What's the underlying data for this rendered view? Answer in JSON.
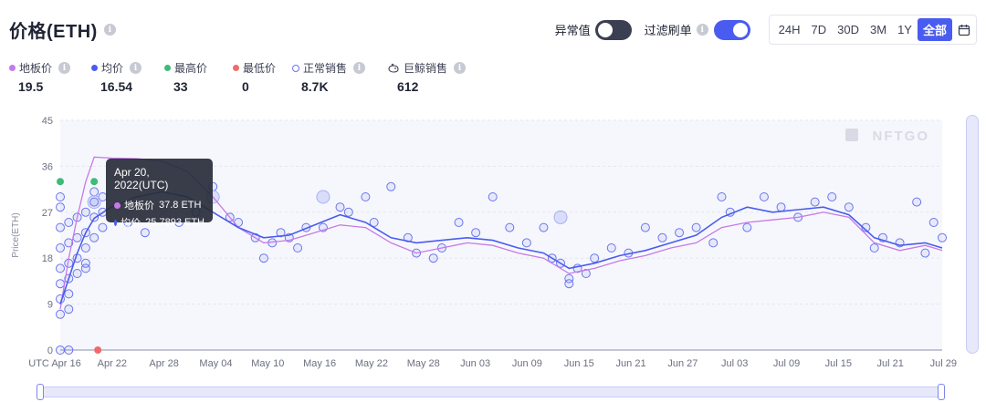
{
  "header": {
    "title": "价格(ETH)",
    "info_icon": "info-icon"
  },
  "controls": {
    "anomaly_label": "异常值",
    "anomaly_on": false,
    "filter_label": "过滤刷单",
    "filter_on": true,
    "ranges": [
      "24H",
      "7D",
      "30D",
      "3M",
      "1Y",
      "全部"
    ],
    "active_range": "全部",
    "calendar_icon": "calendar-icon"
  },
  "legend": [
    {
      "label": "地板价",
      "value": "19.5",
      "color": "#c779e8",
      "marker": "dot",
      "info": true
    },
    {
      "label": "均价",
      "value": "16.54",
      "color": "#4a5cf0",
      "marker": "dot",
      "info": true
    },
    {
      "label": "最高价",
      "value": "33",
      "color": "#3dbb77",
      "marker": "dot",
      "info": false
    },
    {
      "label": "最低价",
      "value": "0",
      "color": "#ef6b6b",
      "marker": "dot",
      "info": false
    },
    {
      "label": "正常销售",
      "value": "8.7K",
      "color": "#6a75ee",
      "marker": "ring",
      "info": true
    },
    {
      "label": "巨鲸销售",
      "value": "612",
      "color": "#3b3f52",
      "marker": "whale",
      "info": true
    }
  ],
  "tooltip": {
    "date": "Apr 20, 2022(UTC)",
    "rows": [
      {
        "label": "地板价",
        "value": "37.8 ETH",
        "color": "#c779e8"
      },
      {
        "label": "均价",
        "value": "25.7893 ETH",
        "color": "#4a5cf0"
      }
    ]
  },
  "watermark": "NFTGO",
  "chart_data": {
    "type": "line",
    "title": "",
    "xlabel": "",
    "ylabel": "Price(ETH)",
    "ylim": [
      0,
      45
    ],
    "yticks": [
      0,
      9,
      18,
      27,
      36,
      45
    ],
    "xlim": [
      "2022-04-16",
      "2022-07-29"
    ],
    "xtick_labels": [
      "UTC Apr 16",
      "Apr 22",
      "Apr 28",
      "May 04",
      "May 10",
      "May 16",
      "May 22",
      "May 28",
      "Jun 03",
      "Jun 09",
      "Jun 15",
      "Jun 21",
      "Jun 27",
      "Jul 03",
      "Jul 09",
      "Jul 15",
      "Jul 21",
      "Jul 29"
    ],
    "grid": true,
    "series": [
      {
        "name": "地板价",
        "color": "#c779e8",
        "points": [
          [
            "2022-04-16",
            8
          ],
          [
            "2022-04-17",
            18
          ],
          [
            "2022-04-18",
            26
          ],
          [
            "2022-04-19",
            33
          ],
          [
            "2022-04-20",
            37.8
          ],
          [
            "2022-04-22",
            37.6
          ],
          [
            "2022-04-25",
            37.5
          ],
          [
            "2022-04-28",
            37
          ],
          [
            "2022-05-01",
            35
          ],
          [
            "2022-05-04",
            30
          ],
          [
            "2022-05-07",
            24
          ],
          [
            "2022-05-10",
            21
          ],
          [
            "2022-05-13",
            21.5
          ],
          [
            "2022-05-16",
            23
          ],
          [
            "2022-05-19",
            24.5
          ],
          [
            "2022-05-22",
            24
          ],
          [
            "2022-05-25",
            21
          ],
          [
            "2022-05-28",
            19
          ],
          [
            "2022-05-31",
            20
          ],
          [
            "2022-06-03",
            21
          ],
          [
            "2022-06-06",
            20.5
          ],
          [
            "2022-06-09",
            19
          ],
          [
            "2022-06-12",
            18
          ],
          [
            "2022-06-15",
            15
          ],
          [
            "2022-06-18",
            16
          ],
          [
            "2022-06-21",
            17.5
          ],
          [
            "2022-06-24",
            18.5
          ],
          [
            "2022-06-27",
            20
          ],
          [
            "2022-06-30",
            21
          ],
          [
            "2022-07-03",
            24
          ],
          [
            "2022-07-06",
            25
          ],
          [
            "2022-07-09",
            25.5
          ],
          [
            "2022-07-12",
            26
          ],
          [
            "2022-07-15",
            27
          ],
          [
            "2022-07-18",
            26
          ],
          [
            "2022-07-21",
            21
          ],
          [
            "2022-07-24",
            19.5
          ],
          [
            "2022-07-27",
            20.5
          ],
          [
            "2022-07-29",
            19.5
          ]
        ]
      },
      {
        "name": "均价",
        "color": "#4a5cf0",
        "points": [
          [
            "2022-04-16",
            9
          ],
          [
            "2022-04-17",
            14
          ],
          [
            "2022-04-18",
            19
          ],
          [
            "2022-04-19",
            23
          ],
          [
            "2022-04-20",
            25.8
          ],
          [
            "2022-04-22",
            28
          ],
          [
            "2022-04-25",
            30
          ],
          [
            "2022-04-28",
            31
          ],
          [
            "2022-05-01",
            30
          ],
          [
            "2022-05-04",
            27
          ],
          [
            "2022-05-07",
            24
          ],
          [
            "2022-05-10",
            22
          ],
          [
            "2022-05-13",
            22.5
          ],
          [
            "2022-05-16",
            24.5
          ],
          [
            "2022-05-19",
            26.5
          ],
          [
            "2022-05-22",
            25
          ],
          [
            "2022-05-25",
            22
          ],
          [
            "2022-05-28",
            21
          ],
          [
            "2022-05-31",
            21.5
          ],
          [
            "2022-06-03",
            22
          ],
          [
            "2022-06-06",
            21.5
          ],
          [
            "2022-06-09",
            20
          ],
          [
            "2022-06-12",
            19
          ],
          [
            "2022-06-15",
            16
          ],
          [
            "2022-06-18",
            17
          ],
          [
            "2022-06-21",
            18.5
          ],
          [
            "2022-06-24",
            19.5
          ],
          [
            "2022-06-27",
            21
          ],
          [
            "2022-06-30",
            22.5
          ],
          [
            "2022-07-03",
            26
          ],
          [
            "2022-07-06",
            28
          ],
          [
            "2022-07-09",
            27
          ],
          [
            "2022-07-12",
            27.5
          ],
          [
            "2022-07-15",
            28
          ],
          [
            "2022-07-18",
            26.5
          ],
          [
            "2022-07-21",
            22
          ],
          [
            "2022-07-24",
            20.5
          ],
          [
            "2022-07-27",
            21
          ],
          [
            "2022-07-29",
            20
          ]
        ]
      }
    ],
    "sales_points": [
      [
        "2022-04-16",
        7
      ],
      [
        "2022-04-16",
        10
      ],
      [
        "2022-04-16",
        13
      ],
      [
        "2022-04-16",
        16
      ],
      [
        "2022-04-16",
        20
      ],
      [
        "2022-04-16",
        24
      ],
      [
        "2022-04-16",
        28
      ],
      [
        "2022-04-16",
        30
      ],
      [
        "2022-04-17",
        8
      ],
      [
        "2022-04-17",
        11
      ],
      [
        "2022-04-17",
        14
      ],
      [
        "2022-04-17",
        17
      ],
      [
        "2022-04-17",
        21
      ],
      [
        "2022-04-17",
        25
      ],
      [
        "2022-04-18",
        15
      ],
      [
        "2022-04-18",
        18
      ],
      [
        "2022-04-18",
        22
      ],
      [
        "2022-04-18",
        26
      ],
      [
        "2022-04-19",
        17
      ],
      [
        "2022-04-19",
        20
      ],
      [
        "2022-04-19",
        23
      ],
      [
        "2022-04-19",
        27
      ],
      [
        "2022-04-19",
        16
      ],
      [
        "2022-04-20",
        22
      ],
      [
        "2022-04-20",
        26
      ],
      [
        "2022-04-20",
        29
      ],
      [
        "2022-04-20",
        31
      ],
      [
        "2022-04-21",
        24
      ],
      [
        "2022-04-21",
        27
      ],
      [
        "2022-04-21",
        30
      ],
      [
        "2022-04-24",
        25
      ],
      [
        "2022-04-26",
        23
      ],
      [
        "2022-04-30",
        25
      ],
      [
        "2022-05-02",
        27
      ],
      [
        "2022-05-04",
        32
      ],
      [
        "2022-05-06",
        26
      ],
      [
        "2022-05-07",
        25
      ],
      [
        "2022-05-09",
        22
      ],
      [
        "2022-05-10",
        18
      ],
      [
        "2022-05-11",
        21
      ],
      [
        "2022-05-12",
        23
      ],
      [
        "2022-05-13",
        22
      ],
      [
        "2022-05-14",
        20
      ],
      [
        "2022-05-15",
        24
      ],
      [
        "2022-05-17",
        24
      ],
      [
        "2022-05-19",
        28
      ],
      [
        "2022-05-20",
        27
      ],
      [
        "2022-05-22",
        30
      ],
      [
        "2022-05-23",
        25
      ],
      [
        "2022-05-25",
        32
      ],
      [
        "2022-05-27",
        22
      ],
      [
        "2022-05-28",
        19
      ],
      [
        "2022-05-30",
        18
      ],
      [
        "2022-05-31",
        20
      ],
      [
        "2022-06-02",
        25
      ],
      [
        "2022-06-04",
        23
      ],
      [
        "2022-06-06",
        30
      ],
      [
        "2022-06-08",
        24
      ],
      [
        "2022-06-10",
        21
      ],
      [
        "2022-06-12",
        24
      ],
      [
        "2022-06-13",
        18
      ],
      [
        "2022-06-14",
        17
      ],
      [
        "2022-06-15",
        14
      ],
      [
        "2022-06-15",
        13
      ],
      [
        "2022-06-16",
        16
      ],
      [
        "2022-06-17",
        15
      ],
      [
        "2022-06-18",
        18
      ],
      [
        "2022-06-20",
        20
      ],
      [
        "2022-06-22",
        19
      ],
      [
        "2022-06-24",
        24
      ],
      [
        "2022-06-26",
        22
      ],
      [
        "2022-06-28",
        23
      ],
      [
        "2022-06-30",
        24
      ],
      [
        "2022-07-02",
        21
      ],
      [
        "2022-07-03",
        30
      ],
      [
        "2022-07-04",
        27
      ],
      [
        "2022-07-06",
        24
      ],
      [
        "2022-07-08",
        30
      ],
      [
        "2022-07-10",
        28
      ],
      [
        "2022-07-12",
        26
      ],
      [
        "2022-07-14",
        29
      ],
      [
        "2022-07-16",
        30
      ],
      [
        "2022-07-18",
        28
      ],
      [
        "2022-07-20",
        24
      ],
      [
        "2022-07-21",
        20
      ],
      [
        "2022-07-22",
        22
      ],
      [
        "2022-07-24",
        21
      ],
      [
        "2022-07-26",
        29
      ],
      [
        "2022-07-27",
        19
      ],
      [
        "2022-07-28",
        25
      ],
      [
        "2022-07-29",
        22
      ]
    ],
    "whale_points": [
      [
        "2022-04-20",
        29
      ],
      [
        "2022-05-04",
        30
      ],
      [
        "2022-05-17",
        30
      ],
      [
        "2022-06-14",
        26
      ]
    ],
    "max_points": [
      [
        "2022-04-16",
        33
      ],
      [
        "2022-04-20",
        33
      ]
    ],
    "min_points": [
      [
        "2022-04-20",
        0
      ]
    ],
    "zero_sales": [
      [
        "2022-04-16",
        0
      ],
      [
        "2022-04-17",
        0
      ]
    ]
  }
}
